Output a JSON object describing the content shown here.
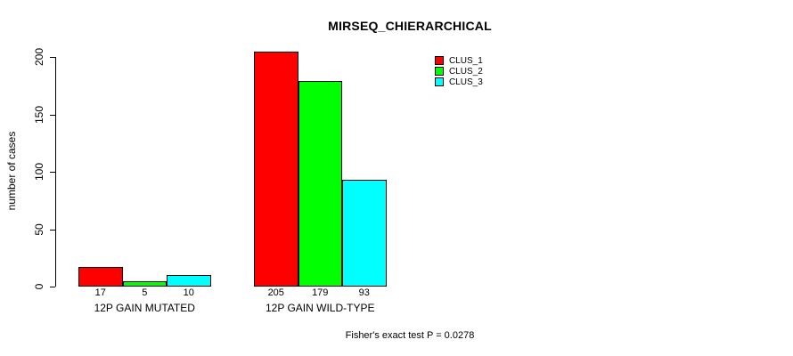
{
  "title": "MIRSEQ_CHIERARCHICAL",
  "footer": "Fisher's exact test P = 0.0278",
  "colors": {
    "background": "#FFFFFF",
    "axis": "#000000",
    "clus_1": "#FF0000",
    "clus_2": "#00FF00",
    "clus_3": "#00FFFF"
  },
  "chart_data": {
    "type": "bar",
    "title": "MIRSEQ_CHIERARCHICAL",
    "xlabel": "",
    "ylabel": "number of cases",
    "categories": [
      "12P GAIN MUTATED",
      "12P GAIN WILD-TYPE"
    ],
    "series": [
      {
        "name": "CLUS_1",
        "color": "#FF0000",
        "values": [
          17,
          205
        ]
      },
      {
        "name": "CLUS_2",
        "color": "#00FF00",
        "values": [
          5,
          179
        ]
      },
      {
        "name": "CLUS_3",
        "color": "#00FFFF",
        "values": [
          10,
          93
        ]
      }
    ],
    "bar_value_labels": [
      [
        "17",
        "5",
        "10"
      ],
      [
        "205",
        "179",
        "93"
      ]
    ],
    "ylim": [
      0,
      200
    ],
    "yticks": [
      0,
      50,
      100,
      150,
      200
    ],
    "grid": false,
    "legend_position": "top-right",
    "annotation": "Fisher's exact test P = 0.0278"
  }
}
